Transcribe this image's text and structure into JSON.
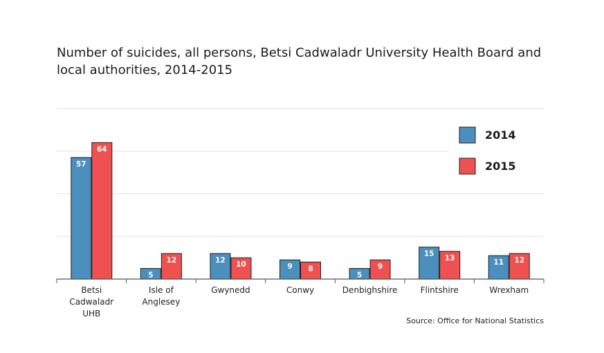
{
  "title_lines": [
    "Number of suicides, all persons, Betsi Cadwaladr University Health Board and",
    "local authorities, 2014-2015"
  ],
  "source": "Source: Office for National Statistics",
  "colors": {
    "s2014": "#4a8fbd",
    "s2015": "#ef5150",
    "grid": "#e2e2e2",
    "axis": "#555555",
    "text": "#222222"
  },
  "chart_data": {
    "type": "bar",
    "title": "Number of suicides, all persons, Betsi Cadwaladr University Health Board and local authorities, 2014-2015",
    "xlabel": "",
    "ylabel": "",
    "ylim": [
      0,
      80
    ],
    "grid": true,
    "legend": "top-right",
    "categories": [
      [
        "Betsi",
        "Cadwaladr",
        "UHB"
      ],
      [
        "Isle of",
        "Anglesey"
      ],
      [
        "Gwynedd"
      ],
      [
        "Conwy"
      ],
      [
        "Denbighshire"
      ],
      [
        "Flintshire"
      ],
      [
        "Wrexham"
      ]
    ],
    "series": [
      {
        "name": "2014",
        "values": [
          57,
          5,
          12,
          9,
          5,
          15,
          11
        ]
      },
      {
        "name": "2015",
        "values": [
          64,
          12,
          10,
          8,
          9,
          13,
          12
        ]
      }
    ]
  }
}
